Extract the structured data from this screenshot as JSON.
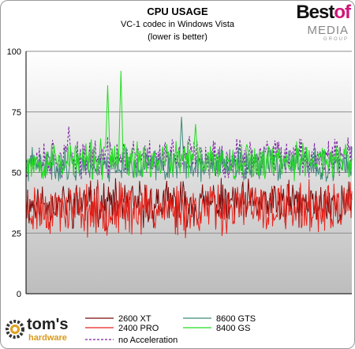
{
  "chart_data": {
    "type": "line",
    "title": "CPU USAGE",
    "subtitle": "VC-1 codec in Windows Vista",
    "note": "(lower is better)",
    "xlabel": "",
    "ylabel": "",
    "ylim": [
      0,
      100
    ],
    "yticks": [
      0,
      25,
      50,
      75,
      100
    ],
    "grid": true,
    "legend_position": "bottom",
    "series": [
      {
        "name": "2600 XT",
        "color": "#7a0a0a",
        "dash": "solid",
        "base": 37,
        "amp": 7,
        "seed": 11,
        "spikes": []
      },
      {
        "name": "2400 PRO",
        "color": "#e8221a",
        "dash": "solid",
        "base": 35,
        "amp": 8,
        "seed": 23,
        "spikes": []
      },
      {
        "name": "no Acceleration",
        "color": "#7b1fa2",
        "dash": "dashed",
        "base": 56,
        "amp": 6,
        "seed": 37,
        "spikes": [
          [
            55,
            69
          ],
          [
            210,
            65
          ],
          [
            310,
            63
          ]
        ]
      },
      {
        "name": "8600 GTS",
        "color": "#3f8a7a",
        "dash": "solid",
        "base": 53,
        "amp": 5,
        "seed": 41,
        "spikes": [
          [
            200,
            73
          ]
        ]
      },
      {
        "name": "8400 GS",
        "color": "#22dd22",
        "dash": "solid",
        "base": 55,
        "amp": 6,
        "seed": 53,
        "spikes": [
          [
            105,
            86
          ],
          [
            122,
            92
          ],
          [
            218,
            70
          ]
        ]
      }
    ]
  },
  "header": {
    "logo_line1_a": "Best",
    "logo_line1_b": "of",
    "logo_line2": "MEDIA",
    "logo_line3": "GROUP"
  },
  "footer": {
    "brand": "tom's",
    "brand_sub": "hardware"
  }
}
